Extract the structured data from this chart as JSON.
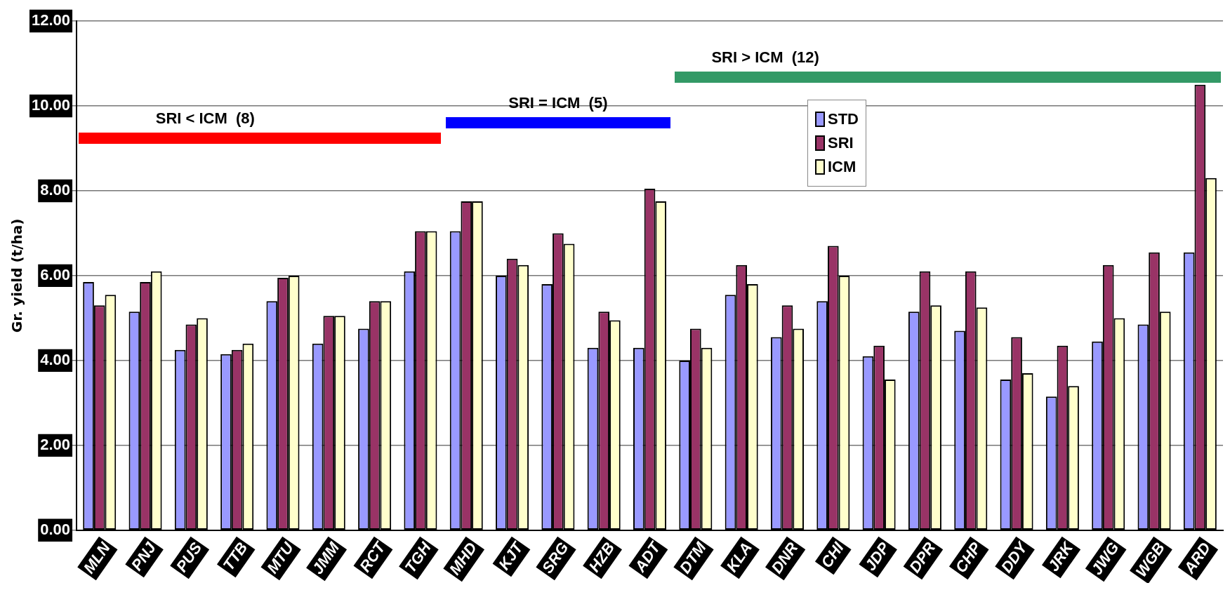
{
  "chart_data": {
    "type": "bar",
    "ylabel": "Gr. yield (t/ha)",
    "categories": [
      "MLN",
      "PNJ",
      "PUS",
      "TTB",
      "MTU",
      "JMM",
      "RCT",
      "TGH",
      "MHD",
      "KJT",
      "SRG",
      "HZB",
      "ADT",
      "DTM",
      "KLA",
      "DNR",
      "CHI",
      "JDP",
      "DPR",
      "CHP",
      "DDY",
      "JRK",
      "JWG",
      "WGB",
      "ARD"
    ],
    "series": [
      {
        "name": "STD",
        "color": "#9999ff",
        "values": [
          5.85,
          5.15,
          4.25,
          4.15,
          5.4,
          4.4,
          4.75,
          6.1,
          7.05,
          6.0,
          5.8,
          4.3,
          4.3,
          4.0,
          5.55,
          4.55,
          5.4,
          4.1,
          5.15,
          4.7,
          3.55,
          3.15,
          4.45,
          4.85,
          6.55
        ]
      },
      {
        "name": "SRI",
        "color": "#993366",
        "values": [
          5.3,
          5.85,
          4.85,
          4.25,
          5.95,
          5.05,
          5.4,
          7.05,
          7.75,
          6.4,
          7.0,
          5.15,
          8.05,
          4.75,
          6.25,
          5.3,
          6.7,
          4.35,
          6.1,
          6.1,
          4.55,
          4.35,
          6.25,
          6.55,
          10.5
        ]
      },
      {
        "name": "ICM",
        "color": "#ffffcc",
        "values": [
          5.55,
          6.1,
          5.0,
          4.4,
          6.0,
          5.05,
          5.4,
          7.05,
          7.75,
          6.25,
          6.75,
          4.95,
          7.75,
          4.3,
          5.8,
          4.75,
          6.0,
          3.55,
          5.3,
          5.25,
          3.7,
          3.4,
          5.0,
          5.15,
          8.3
        ]
      }
    ],
    "ylim": [
      0,
      12
    ],
    "yticks": [
      {
        "value": 0,
        "label": "0.00"
      },
      {
        "value": 2,
        "label": "2.00"
      },
      {
        "value": 4,
        "label": "4.00"
      },
      {
        "value": 6,
        "label": "6.00"
      },
      {
        "value": 8,
        "label": "8.00"
      },
      {
        "value": 10,
        "label": "10.00"
      },
      {
        "value": 12,
        "label": "12.00"
      }
    ],
    "grid": "y",
    "legend": "top",
    "annotations": [
      "SRI < ICM  (8)",
      "SRI = ICM  (5)",
      "SRI > ICM  (12)"
    ]
  }
}
